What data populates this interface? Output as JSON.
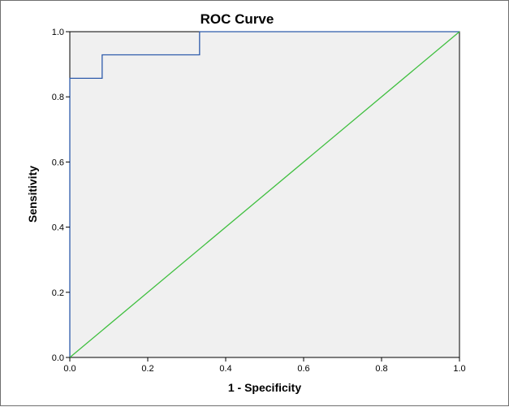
{
  "chart_data": {
    "type": "line",
    "title": "ROC Curve",
    "xlabel": "1 - Specificity",
    "ylabel": "Sensitivity",
    "xlim": [
      0,
      1
    ],
    "ylim": [
      0,
      1
    ],
    "x_ticks": [
      0.0,
      0.2,
      0.4,
      0.6,
      0.8,
      1.0
    ],
    "y_ticks": [
      0.0,
      0.2,
      0.4,
      0.6,
      0.8,
      1.0
    ],
    "x_tick_labels": [
      "0.0",
      "0.2",
      "0.4",
      "0.6",
      "0.8",
      "1.0"
    ],
    "y_tick_labels": [
      "0.0",
      "0.2",
      "0.4",
      "0.6",
      "0.8",
      "1.0"
    ],
    "grid": false,
    "legend": "none",
    "plot_background": "#f0f0f0",
    "series": [
      {
        "color": "#2e5bab",
        "step": true,
        "points": [
          [
            0.0,
            0.0
          ],
          [
            0.0,
            0.857
          ],
          [
            0.083,
            0.857
          ],
          [
            0.083,
            0.929
          ],
          [
            0.333,
            0.929
          ],
          [
            0.333,
            1.0
          ],
          [
            1.0,
            1.0
          ]
        ]
      },
      {
        "color": "#3fbf3f",
        "step": false,
        "points": [
          [
            0.0,
            0.0
          ],
          [
            1.0,
            1.0
          ]
        ]
      }
    ]
  }
}
